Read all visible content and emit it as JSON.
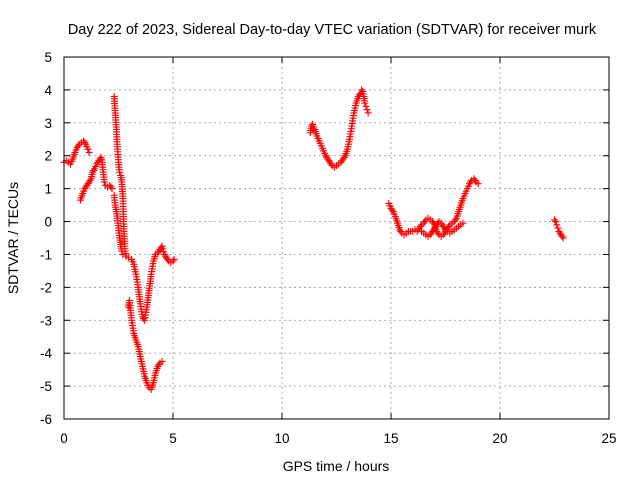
{
  "chart_data": {
    "type": "scatter",
    "title": "Day 222 of 2023, Sidereal Day-to-day VTEC variation (SDTVAR) for receiver murk",
    "xlabel": "GPS time / hours",
    "ylabel": "SDTVAR / TECUs",
    "xlim": [
      0,
      25
    ],
    "ylim": [
      -6,
      5
    ],
    "x_ticks": [
      0,
      5,
      10,
      15,
      20,
      25
    ],
    "x_tick_labels": [
      "0",
      "5",
      "10",
      "15",
      "20",
      "25"
    ],
    "y_ticks": [
      -6,
      -5,
      -4,
      -3,
      -2,
      -1,
      0,
      1,
      2,
      3,
      4,
      5
    ],
    "y_tick_labels": [
      "-6",
      "-5",
      "-4",
      "-3",
      "-2",
      "-1",
      "0",
      "1",
      "2",
      "3",
      "4",
      "5"
    ],
    "grid": true,
    "marker": "plus",
    "point_color": "#ff0000",
    "series": [
      {
        "segments": [
          [
            [
              0.0,
              1.8
            ],
            [
              0.1,
              1.85
            ],
            [
              0.2,
              1.8
            ],
            [
              0.3,
              1.75
            ],
            [
              0.4,
              1.9
            ],
            [
              0.5,
              2.1
            ],
            [
              0.6,
              2.25
            ],
            [
              0.7,
              2.35
            ],
            [
              0.8,
              2.4
            ],
            [
              0.9,
              2.45
            ],
            [
              1.0,
              2.35
            ],
            [
              1.1,
              2.2
            ],
            [
              1.15,
              2.1
            ]
          ],
          [
            [
              0.75,
              0.65
            ],
            [
              0.85,
              0.85
            ],
            [
              0.95,
              1.0
            ],
            [
              1.05,
              1.1
            ],
            [
              1.15,
              1.2
            ],
            [
              1.25,
              1.3
            ],
            [
              1.3,
              1.5
            ],
            [
              1.4,
              1.6
            ],
            [
              1.5,
              1.75
            ],
            [
              1.6,
              1.85
            ],
            [
              1.7,
              1.95
            ],
            [
              1.75,
              1.8
            ],
            [
              1.8,
              1.5
            ],
            [
              1.85,
              1.2
            ],
            [
              1.9,
              1.1
            ],
            [
              2.0,
              1.05
            ],
            [
              2.1,
              1.1
            ],
            [
              2.2,
              1.0
            ]
          ],
          [
            [
              2.3,
              3.8
            ],
            [
              2.35,
              3.3
            ],
            [
              2.4,
              2.8
            ],
            [
              2.45,
              2.2
            ],
            [
              2.5,
              1.8
            ],
            [
              2.55,
              1.5
            ],
            [
              2.6,
              1.4
            ],
            [
              2.65,
              1.2
            ],
            [
              2.7,
              0.7
            ],
            [
              2.72,
              0.3
            ],
            [
              2.75,
              -0.3
            ],
            [
              2.78,
              -0.6
            ],
            [
              2.8,
              -0.9
            ],
            [
              2.85,
              -1.05
            ],
            [
              2.95,
              -1.1
            ],
            [
              3.1,
              -1.15
            ],
            [
              3.2,
              -1.3
            ],
            [
              3.3,
              -1.6
            ],
            [
              3.4,
              -2.0
            ],
            [
              3.5,
              -2.5
            ],
            [
              3.6,
              -2.9
            ],
            [
              3.7,
              -3.0
            ],
            [
              3.8,
              -2.6
            ],
            [
              3.9,
              -2.1
            ],
            [
              4.0,
              -1.6
            ],
            [
              4.1,
              -1.2
            ],
            [
              4.2,
              -1.0
            ],
            [
              4.3,
              -0.95
            ],
            [
              4.4,
              -0.85
            ],
            [
              4.5,
              -0.75
            ],
            [
              4.6,
              -1.0
            ],
            [
              4.7,
              -1.1
            ],
            [
              4.8,
              -1.2
            ],
            [
              4.9,
              -1.25
            ],
            [
              5.0,
              -1.2
            ],
            [
              5.05,
              -1.15
            ]
          ],
          [
            [
              2.3,
              0.8
            ],
            [
              2.35,
              0.5
            ],
            [
              2.4,
              0.3
            ],
            [
              2.45,
              0.1
            ],
            [
              2.5,
              -0.2
            ],
            [
              2.55,
              -0.5
            ],
            [
              2.6,
              -0.7
            ],
            [
              2.65,
              -0.9
            ],
            [
              2.7,
              -1.0
            ]
          ],
          [
            [
              2.95,
              -2.6
            ],
            [
              3.0,
              -2.4
            ],
            [
              3.05,
              -2.7
            ],
            [
              3.1,
              -3.0
            ],
            [
              3.2,
              -3.4
            ],
            [
              3.3,
              -3.6
            ],
            [
              3.4,
              -3.8
            ],
            [
              3.5,
              -4.1
            ],
            [
              3.6,
              -4.4
            ],
            [
              3.7,
              -4.7
            ],
            [
              3.8,
              -4.9
            ],
            [
              3.9,
              -5.05
            ],
            [
              4.0,
              -5.1
            ],
            [
              4.1,
              -4.9
            ],
            [
              4.2,
              -4.6
            ],
            [
              4.3,
              -4.4
            ],
            [
              4.4,
              -4.3
            ],
            [
              4.5,
              -4.25
            ]
          ],
          [
            [
              11.3,
              2.7
            ],
            [
              11.35,
              2.9
            ],
            [
              11.4,
              2.95
            ],
            [
              11.5,
              2.8
            ],
            [
              11.6,
              2.6
            ],
            [
              11.7,
              2.45
            ],
            [
              11.8,
              2.3
            ],
            [
              11.9,
              2.15
            ],
            [
              12.0,
              2.0
            ],
            [
              12.1,
              1.9
            ],
            [
              12.2,
              1.8
            ],
            [
              12.3,
              1.7
            ],
            [
              12.4,
              1.65
            ],
            [
              12.5,
              1.7
            ],
            [
              12.6,
              1.75
            ],
            [
              12.7,
              1.8
            ],
            [
              12.8,
              1.9
            ],
            [
              12.9,
              2.0
            ],
            [
              13.0,
              2.2
            ],
            [
              13.1,
              2.5
            ],
            [
              13.2,
              2.9
            ],
            [
              13.3,
              3.3
            ],
            [
              13.4,
              3.6
            ],
            [
              13.5,
              3.8
            ],
            [
              13.6,
              3.9
            ],
            [
              13.65,
              4.0
            ],
            [
              13.7,
              3.95
            ],
            [
              13.75,
              3.8
            ],
            [
              13.8,
              3.6
            ],
            [
              13.85,
              3.5
            ],
            [
              13.9,
              3.4
            ],
            [
              13.95,
              3.3
            ]
          ],
          [
            [
              14.9,
              0.55
            ],
            [
              15.0,
              0.4
            ],
            [
              15.1,
              0.3
            ],
            [
              15.2,
              0.15
            ],
            [
              15.3,
              -0.05
            ],
            [
              15.4,
              -0.25
            ],
            [
              15.5,
              -0.35
            ],
            [
              15.6,
              -0.4
            ],
            [
              15.7,
              -0.35
            ],
            [
              15.8,
              -0.3
            ],
            [
              15.9,
              -0.3
            ],
            [
              16.0,
              -0.3
            ],
            [
              16.1,
              -0.25
            ],
            [
              16.2,
              -0.3
            ],
            [
              16.3,
              -0.2
            ],
            [
              16.4,
              -0.1
            ],
            [
              16.5,
              -0.05
            ],
            [
              16.6,
              0.05
            ],
            [
              16.7,
              0.1
            ],
            [
              16.8,
              0.05
            ],
            [
              16.9,
              0.0
            ],
            [
              17.0,
              -0.1
            ],
            [
              17.1,
              -0.3
            ],
            [
              17.2,
              -0.4
            ],
            [
              17.3,
              -0.45
            ],
            [
              17.4,
              -0.4
            ],
            [
              17.5,
              -0.3
            ],
            [
              17.6,
              -0.2
            ],
            [
              17.7,
              -0.1
            ],
            [
              17.8,
              -0.05
            ],
            [
              17.9,
              0.0
            ],
            [
              18.0,
              0.1
            ],
            [
              18.1,
              0.3
            ],
            [
              18.2,
              0.5
            ],
            [
              18.3,
              0.7
            ],
            [
              18.4,
              0.85
            ],
            [
              18.5,
              1.0
            ],
            [
              18.6,
              1.15
            ],
            [
              18.7,
              1.25
            ],
            [
              18.8,
              1.3
            ],
            [
              18.9,
              1.2
            ],
            [
              19.0,
              1.15
            ]
          ],
          [
            [
              16.4,
              -0.3
            ],
            [
              16.5,
              -0.35
            ],
            [
              16.6,
              -0.4
            ],
            [
              16.7,
              -0.45
            ],
            [
              16.8,
              -0.4
            ],
            [
              16.9,
              -0.3
            ],
            [
              17.0,
              -0.2
            ],
            [
              17.1,
              -0.1
            ],
            [
              17.2,
              0.0
            ],
            [
              17.3,
              -0.05
            ],
            [
              17.4,
              -0.15
            ],
            [
              17.5,
              -0.25
            ],
            [
              17.6,
              -0.3
            ],
            [
              17.7,
              -0.35
            ],
            [
              17.8,
              -0.3
            ],
            [
              17.9,
              -0.25
            ],
            [
              18.0,
              -0.2
            ],
            [
              18.1,
              -0.15
            ],
            [
              18.2,
              -0.1
            ],
            [
              18.3,
              -0.05
            ]
          ],
          [
            [
              22.5,
              0.05
            ],
            [
              22.55,
              0.0
            ],
            [
              22.6,
              -0.1
            ],
            [
              22.65,
              -0.2
            ],
            [
              22.7,
              -0.3
            ],
            [
              22.75,
              -0.35
            ],
            [
              22.8,
              -0.4
            ],
            [
              22.85,
              -0.45
            ],
            [
              22.9,
              -0.5
            ]
          ]
        ]
      }
    ]
  }
}
